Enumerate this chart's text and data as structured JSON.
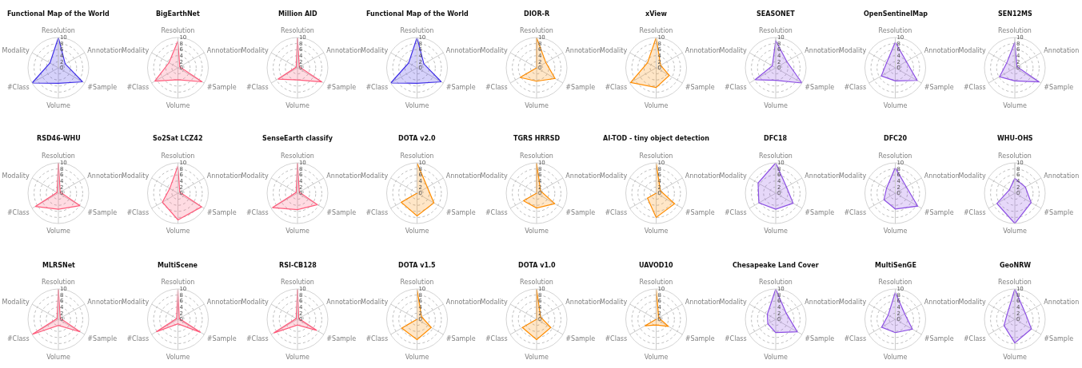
{
  "chart_data": [
    {
      "type": "radar",
      "title": "Functional Map of the World",
      "categories": [
        "Resolution",
        "Annotation",
        "#Sample",
        "Volume",
        "#Class",
        "Modality"
      ],
      "series": [
        {
          "color": "#3f2fe6",
          "values": [
            10,
            2.6,
            9.2,
            5.1,
            10,
            3.2
          ]
        }
      ],
      "ylim": [
        0,
        10
      ],
      "yticks": [
        0,
        2,
        4,
        6,
        8,
        10
      ],
      "grid": true
    },
    {
      "type": "radar",
      "title": "BigEarthNet",
      "categories": [
        "Resolution",
        "Annotation",
        "#Sample",
        "Volume",
        "#Class",
        "Modality"
      ],
      "series": [
        {
          "color": "#ff5c7c",
          "values": [
            8.9,
            0.7,
            9.2,
            3.9,
            8.8,
            3.4
          ]
        }
      ],
      "ylim": [
        0,
        10
      ],
      "yticks": [
        0,
        2,
        4,
        6,
        8,
        10
      ],
      "grid": true
    },
    {
      "type": "radar",
      "title": "Million AID",
      "categories": [
        "Resolution",
        "Annotation",
        "#Sample",
        "Volume",
        "#Class",
        "Modality"
      ],
      "series": [
        {
          "color": "#ff5c7c",
          "values": [
            10,
            0.7,
            9.3,
            4.0,
            7.4,
            0.5
          ]
        }
      ],
      "ylim": [
        0,
        10
      ],
      "yticks": [
        0,
        2,
        4,
        6,
        8,
        10
      ],
      "grid": true
    },
    {
      "type": "radar",
      "title": "Functional Map of the World",
      "categories": [
        "Resolution",
        "Annotation",
        "#Sample",
        "Volume",
        "#Class",
        "Modality"
      ],
      "series": [
        {
          "color": "#3f2fe6",
          "values": [
            10,
            2.6,
            9.2,
            5.1,
            10,
            3.2
          ]
        }
      ],
      "ylim": [
        0,
        10
      ],
      "yticks": [
        0,
        2,
        4,
        6,
        8,
        10
      ],
      "grid": true
    },
    {
      "type": "radar",
      "title": "DIOR-R",
      "categories": [
        "Resolution",
        "Annotation",
        "#Sample",
        "Volume",
        "#Class",
        "Modality"
      ],
      "series": [
        {
          "color": "#ff8c00",
          "values": [
            10,
            3.5,
            7.0,
            4.4,
            6.3,
            0
          ]
        }
      ],
      "ylim": [
        0,
        10
      ],
      "yticks": [
        0,
        2,
        4,
        6,
        8,
        10
      ],
      "grid": true
    },
    {
      "type": "radar",
      "title": "xView",
      "categories": [
        "Resolution",
        "Annotation",
        "#Sample",
        "Volume",
        "#Class",
        "Modality"
      ],
      "series": [
        {
          "color": "#ff8c00",
          "values": [
            10,
            1.7,
            5.0,
            6.5,
            9.7,
            3.3
          ]
        }
      ],
      "ylim": [
        0,
        10
      ],
      "yticks": [
        0,
        2,
        4,
        6,
        8,
        10
      ],
      "grid": true
    },
    {
      "type": "radar",
      "title": "SEASONET",
      "categories": [
        "Resolution",
        "Annotation",
        "#Sample",
        "Volume",
        "#Class",
        "Modality"
      ],
      "series": [
        {
          "color": "#8c4fe3",
          "values": [
            9.0,
            4.2,
            10,
            4.1,
            7.8,
            1.3
          ]
        }
      ],
      "ylim": [
        0,
        10
      ],
      "yticks": [
        0,
        2,
        4,
        6,
        8,
        10
      ],
      "grid": true
    },
    {
      "type": "radar",
      "title": "OpenSentinelMap",
      "categories": [
        "Resolution",
        "Annotation",
        "#Sample",
        "Volume",
        "#Class",
        "Modality"
      ],
      "series": [
        {
          "color": "#8c4fe3",
          "values": [
            8.5,
            4.2,
            8.3,
            4.3,
            5.3,
            3.3
          ]
        }
      ],
      "ylim": [
        0,
        10
      ],
      "yticks": [
        0,
        2,
        4,
        6,
        8,
        10
      ],
      "grid": true
    },
    {
      "type": "radar",
      "title": "SEN12MS",
      "categories": [
        "Resolution",
        "Annotation",
        "#Sample",
        "Volume",
        "#Class",
        "Modality"
      ],
      "series": [
        {
          "color": "#8c4fe3",
          "values": [
            8.5,
            0.8,
            9.3,
            4.3,
            5.8,
            3.1
          ]
        }
      ],
      "ylim": [
        0,
        10
      ],
      "yticks": [
        0,
        2,
        4,
        6,
        8,
        10
      ],
      "grid": true
    },
    {
      "type": "radar",
      "title": "RSD46-WHU",
      "categories": [
        "Resolution",
        "Annotation",
        "#Sample",
        "Volume",
        "#Class",
        "Modality"
      ],
      "series": [
        {
          "color": "#ff5c7c",
          "values": [
            10,
            0.7,
            8.2,
            5.3,
            8.8,
            0.5
          ]
        }
      ],
      "ylim": [
        0,
        10
      ],
      "yticks": [
        0,
        2,
        4,
        6,
        8,
        10
      ],
      "grid": true
    },
    {
      "type": "radar",
      "title": "So2Sat LCZ42",
      "categories": [
        "Resolution",
        "Annotation",
        "#Sample",
        "Volume",
        "#Class",
        "Modality"
      ],
      "series": [
        {
          "color": "#ff5c7c",
          "values": [
            9.0,
            0.7,
            9.0,
            8.8,
            5.9,
            3.1
          ]
        }
      ],
      "ylim": [
        0,
        10
      ],
      "yticks": [
        0,
        2,
        4,
        6,
        8,
        10
      ],
      "grid": true
    },
    {
      "type": "radar",
      "title": "SenseEarth classify",
      "categories": [
        "Resolution",
        "Annotation",
        "#Sample",
        "Volume",
        "#Class",
        "Modality"
      ],
      "series": [
        {
          "color": "#ff5c7c",
          "values": [
            10,
            0.7,
            7.6,
            5.4,
            9.5,
            0.5
          ]
        }
      ],
      "ylim": [
        0,
        10
      ],
      "yticks": [
        0,
        2,
        4,
        6,
        8,
        10
      ],
      "grid": true
    },
    {
      "type": "radar",
      "title": "DOTA v2.0",
      "categories": [
        "Resolution",
        "Annotation",
        "#Sample",
        "Volume",
        "#Class",
        "Modality"
      ],
      "series": [
        {
          "color": "#ff8c00",
          "values": [
            10,
            3.9,
            6.4,
            7.5,
            6.0,
            0
          ]
        }
      ],
      "ylim": [
        0,
        10
      ],
      "yticks": [
        0,
        2,
        4,
        6,
        8,
        10
      ],
      "grid": true
    },
    {
      "type": "radar",
      "title": "TGRS HRRSD",
      "categories": [
        "Resolution",
        "Annotation",
        "#Sample",
        "Volume",
        "#Class",
        "Modality"
      ],
      "series": [
        {
          "color": "#ff8c00",
          "values": [
            10,
            1.5,
            6.9,
            4.9,
            5.0,
            0
          ]
        }
      ],
      "ylim": [
        0,
        10
      ],
      "yticks": [
        0,
        2,
        4,
        6,
        8,
        10
      ],
      "grid": true
    },
    {
      "type": "radar",
      "title": "AI-TOD - tiny object detection",
      "categories": [
        "Resolution",
        "Annotation",
        "#Sample",
        "Volume",
        "#Class",
        "Modality"
      ],
      "series": [
        {
          "color": "#ff8c00",
          "values": [
            10,
            1.6,
            7.0,
            8.0,
            3.3,
            0
          ]
        }
      ],
      "ylim": [
        0,
        10
      ],
      "yticks": [
        0,
        2,
        4,
        6,
        8,
        10
      ],
      "grid": true
    },
    {
      "type": "radar",
      "title": "DFC18",
      "categories": [
        "Resolution",
        "Annotation",
        "#Sample",
        "Volume",
        "#Class",
        "Modality"
      ],
      "series": [
        {
          "color": "#8c4fe3",
          "values": [
            10,
            4.1,
            6.6,
            5.3,
            6.4,
            6.7
          ]
        }
      ],
      "ylim": [
        0,
        10
      ],
      "yticks": [
        0,
        2,
        4,
        6,
        8,
        10
      ],
      "grid": true
    },
    {
      "type": "radar",
      "title": "DFC20",
      "categories": [
        "Resolution",
        "Annotation",
        "#Sample",
        "Volume",
        "#Class",
        "Modality"
      ],
      "series": [
        {
          "color": "#8c4fe3",
          "values": [
            8.4,
            4.2,
            8.5,
            5.2,
            4.3,
            3.3
          ]
        }
      ],
      "ylim": [
        0,
        10
      ],
      "yticks": [
        0,
        2,
        4,
        6,
        8,
        10
      ],
      "grid": true
    },
    {
      "type": "radar",
      "title": "WHU-OHS",
      "categories": [
        "Resolution",
        "Annotation",
        "#Sample",
        "Volume",
        "#Class",
        "Modality"
      ],
      "series": [
        {
          "color": "#8c4fe3",
          "values": [
            4.9,
            4.0,
            6.2,
            10,
            6.8,
            2.1
          ]
        }
      ],
      "ylim": [
        0,
        10
      ],
      "yticks": [
        0,
        2,
        4,
        6,
        8,
        10
      ],
      "grid": true
    },
    {
      "type": "radar",
      "title": "MLRSNet",
      "categories": [
        "Resolution",
        "Annotation",
        "#Sample",
        "Volume",
        "#Class",
        "Modality"
      ],
      "series": [
        {
          "color": "#ff5c7c",
          "values": [
            10,
            0.7,
            8.3,
            2.0,
            10,
            0.5
          ]
        }
      ],
      "ylim": [
        0,
        10
      ],
      "yticks": [
        0,
        2,
        4,
        6,
        8,
        10
      ],
      "grid": true
    },
    {
      "type": "radar",
      "title": "MultiScene",
      "categories": [
        "Resolution",
        "Annotation",
        "#Sample",
        "Volume",
        "#Class",
        "Modality"
      ],
      "series": [
        {
          "color": "#ff5c7c",
          "values": [
            10,
            0.5,
            8.6,
            1.5,
            8.2,
            0.5
          ]
        }
      ],
      "ylim": [
        0,
        10
      ],
      "yticks": [
        0,
        2,
        4,
        6,
        8,
        10
      ],
      "grid": true
    },
    {
      "type": "radar",
      "title": "RSI-CB128",
      "categories": [
        "Resolution",
        "Annotation",
        "#Sample",
        "Volume",
        "#Class",
        "Modality"
      ],
      "series": [
        {
          "color": "#ff5c7c",
          "values": [
            10,
            0.5,
            7.3,
            1.9,
            9.0,
            0.5
          ]
        }
      ],
      "ylim": [
        0,
        10
      ],
      "yticks": [
        0,
        2,
        4,
        6,
        8,
        10
      ],
      "grid": true
    },
    {
      "type": "radar",
      "title": "DOTA v1.5",
      "categories": [
        "Resolution",
        "Annotation",
        "#Sample",
        "Volume",
        "#Class",
        "Modality"
      ],
      "series": [
        {
          "color": "#ff8c00",
          "values": [
            10,
            1.7,
            5.4,
            6.7,
            5.8,
            0
          ]
        }
      ],
      "ylim": [
        0,
        10
      ],
      "yticks": [
        0,
        2,
        4,
        6,
        8,
        10
      ],
      "grid": true
    },
    {
      "type": "radar",
      "title": "DOTA v1.0",
      "categories": [
        "Resolution",
        "Annotation",
        "#Sample",
        "Volume",
        "#Class",
        "Modality"
      ],
      "series": [
        {
          "color": "#ff8c00",
          "values": [
            10,
            1.5,
            5.4,
            6.7,
            5.4,
            0
          ]
        }
      ],
      "ylim": [
        0,
        10
      ],
      "yticks": [
        0,
        2,
        4,
        6,
        8,
        10
      ],
      "grid": true
    },
    {
      "type": "radar",
      "title": "UAVOD10",
      "categories": [
        "Resolution",
        "Annotation",
        "#Sample",
        "Volume",
        "#Class",
        "Modality"
      ],
      "series": [
        {
          "color": "#ff8c00",
          "values": [
            10,
            1.0,
            4.7,
            1.9,
            4.3,
            0
          ]
        }
      ],
      "ylim": [
        0,
        10
      ],
      "yticks": [
        0,
        2,
        4,
        6,
        8,
        10
      ],
      "grid": true
    },
    {
      "type": "radar",
      "title": "Chesapeake Land Cover",
      "categories": [
        "Resolution",
        "Annotation",
        "#Sample",
        "Volume",
        "#Class",
        "Modality"
      ],
      "series": [
        {
          "color": "#8c4fe3",
          "values": [
            10,
            4.0,
            8.2,
            4.4,
            3.0,
            3.2
          ]
        }
      ],
      "ylim": [
        0,
        10
      ],
      "yticks": [
        0,
        2,
        4,
        6,
        8,
        10
      ],
      "grid": true
    },
    {
      "type": "radar",
      "title": "MultiSenGE",
      "categories": [
        "Resolution",
        "Annotation",
        "#Sample",
        "Volume",
        "#Class",
        "Modality"
      ],
      "series": [
        {
          "color": "#8c4fe3",
          "values": [
            8.9,
            3.6,
            6.5,
            4.4,
            5.2,
            2.7
          ]
        }
      ],
      "ylim": [
        0,
        10
      ],
      "yticks": [
        0,
        2,
        4,
        6,
        8,
        10
      ],
      "grid": true
    },
    {
      "type": "radar",
      "title": "GeoNRW",
      "categories": [
        "Resolution",
        "Annotation",
        "#Sample",
        "Volume",
        "#Class",
        "Modality"
      ],
      "series": [
        {
          "color": "#8c4fe3",
          "values": [
            10,
            4.0,
            6.3,
            7.8,
            4.1,
            3.0
          ]
        }
      ],
      "ylim": [
        0,
        10
      ],
      "yticks": [
        0,
        2,
        4,
        6,
        8,
        10
      ],
      "grid": true
    }
  ]
}
